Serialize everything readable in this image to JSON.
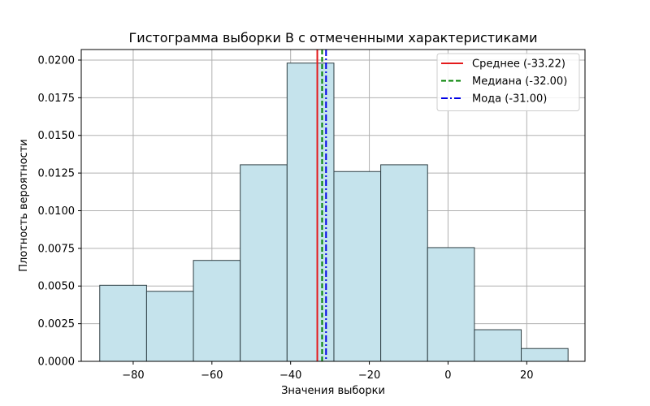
{
  "chart_data": {
    "type": "bar",
    "title": "Гистограмма выборки B с отмеченными характеристиками",
    "xlabel": "Значения выборки",
    "ylabel": "Плотность вероятности",
    "xlim": [
      -93.2,
      34.8
    ],
    "ylim": [
      0,
      0.0207
    ],
    "x_ticks": [
      -80,
      -60,
      -40,
      -20,
      0,
      20
    ],
    "y_ticks": [
      0.0,
      0.0025,
      0.005,
      0.0075,
      0.01,
      0.0125,
      0.015,
      0.0175,
      0.02
    ],
    "grid": true,
    "bins": [
      {
        "x0": -88.5,
        "x1": -76.6,
        "value": 0.00505
      },
      {
        "x0": -76.6,
        "x1": -64.7,
        "value": 0.00465
      },
      {
        "x0": -64.7,
        "x1": -52.8,
        "value": 0.0067
      },
      {
        "x0": -52.8,
        "x1": -40.9,
        "value": 0.01305
      },
      {
        "x0": -40.9,
        "x1": -29.0,
        "value": 0.0198
      },
      {
        "x0": -29.0,
        "x1": -17.1,
        "value": 0.0126
      },
      {
        "x0": -17.1,
        "x1": -5.2,
        "value": 0.01305
      },
      {
        "x0": -5.2,
        "x1": 6.7,
        "value": 0.00755
      },
      {
        "x0": 6.7,
        "x1": 18.6,
        "value": 0.0021
      },
      {
        "x0": 18.6,
        "x1": 30.5,
        "value": 0.00085
      }
    ],
    "bar_fill": "#c5e3ec",
    "bar_edge": "#2f3f44",
    "vlines": [
      {
        "name": "Среднее (-33.22)",
        "x": -33.22,
        "color": "#e41a1c",
        "style": "solid"
      },
      {
        "name": "Медиана (-32.00)",
        "x": -32.0,
        "color": "#008000",
        "style": "dashed"
      },
      {
        "name": "Мода (-31.00)",
        "x": -31.0,
        "color": "#0000e6",
        "style": "dashdot"
      }
    ],
    "legend_position": "top-right"
  }
}
